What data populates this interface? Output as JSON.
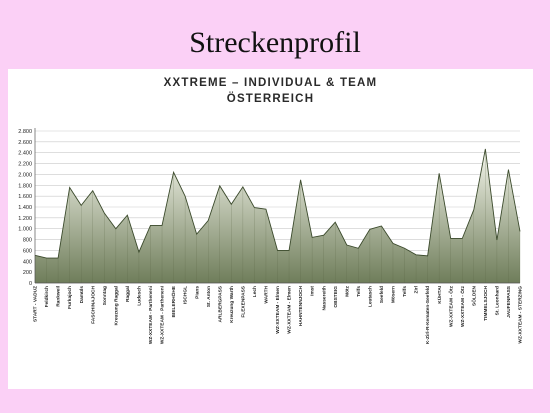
{
  "slide": {
    "title": "Streckenprofil"
  },
  "chart_data": {
    "type": "area",
    "title": "XXTREME – INDIVIDUAL & TEAM",
    "subtitle": "ÖSTERREICH",
    "ylim": [
      0,
      2800
    ],
    "yticks": [
      0,
      200,
      400,
      600,
      800,
      1000,
      1200,
      1400,
      1600,
      1800,
      2000,
      2200,
      2400,
      2600,
      2800
    ],
    "ytick_labels": [
      "0",
      "200",
      "400",
      "600",
      "800",
      "1.000",
      "1.200",
      "1.400",
      "1.600",
      "1.800",
      "2.000",
      "2.200",
      "2.400",
      "2.600",
      "2.800"
    ],
    "grid": true,
    "categories": [
      "START - VADUZ",
      "Feldkirch",
      "Rankweil",
      "Furkajoch",
      "Damüls",
      "FASCHINAJOCH",
      "Sonntag",
      "Kreuzung Raggal",
      "Raggal",
      "Ludesch",
      "WZ-XXTEAM - Partheneni",
      "WZ-XXTEAM - Partheneni",
      "BIELERHÖHE",
      "ISCHGL",
      "Pians",
      "St. Anton",
      "ARLBERGPASS",
      "Kreuzung Warth",
      "FLEXENPASS",
      "Lech",
      "WARTH",
      "WZ-XXTEAM - Elmen",
      "WZ-XXTEAM - Elmen",
      "HAHNTENNJOCH",
      "Imst",
      "Nassereith",
      "OBSTEIG",
      "Mötz",
      "Telfs",
      "Leutasch",
      "Seefeld",
      "Mösern",
      "Telfs",
      "Zirl",
      "K-Zirl-R-Kematen-Seefeld",
      "KÜHTAI",
      "WZ-XXTEAM - Ötz",
      "WZ-XXTEAM - Ötz",
      "SÖLDEN",
      "TIMMELSJOCH",
      "St. Leonhard",
      "JAUFENPASS",
      "WZ-XXTEAM - STERZING"
    ],
    "values": [
      510,
      460,
      460,
      1760,
      1430,
      1700,
      1290,
      1000,
      1250,
      570,
      1060,
      1060,
      2040,
      1600,
      900,
      1150,
      1790,
      1450,
      1770,
      1390,
      1360,
      600,
      600,
      1900,
      840,
      880,
      1120,
      700,
      640,
      990,
      1050,
      730,
      640,
      520,
      500,
      2020,
      820,
      820,
      1350,
      2470,
      790,
      2090,
      950
    ],
    "fill_color_top": "#f4f6ec",
    "fill_color_bottom": "#6f7d5a",
    "line_color": "#3b4a2c"
  }
}
